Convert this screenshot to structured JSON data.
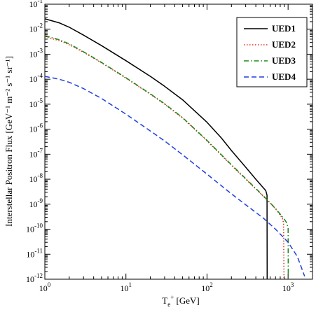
{
  "chart_data": {
    "type": "line",
    "xlabel": "T",
    "xlabel_sub": "e",
    "xlabel_sup": "+",
    "xlabel_unit": " [GeV]",
    "ylabel": "Interstellar Positron Flux [GeV⁻¹ m⁻² s⁻¹ sr⁻¹]",
    "x_scale": "log",
    "y_scale": "log",
    "xlim": [
      1,
      2000
    ],
    "ylim": [
      1e-12,
      0.1
    ],
    "x_ticks": [
      {
        "value": 1,
        "base": "10",
        "exp": "0"
      },
      {
        "value": 10,
        "base": "10",
        "exp": "1"
      },
      {
        "value": 100,
        "base": "10",
        "exp": "2"
      },
      {
        "value": 1000,
        "base": "10",
        "exp": "3"
      }
    ],
    "y_ticks": [
      {
        "value": 1e-12,
        "base": "10",
        "exp": "-12"
      },
      {
        "value": 1e-11,
        "base": "10",
        "exp": "-11"
      },
      {
        "value": 1e-10,
        "base": "10",
        "exp": "-10"
      },
      {
        "value": 1e-09,
        "base": "10",
        "exp": "-9"
      },
      {
        "value": 1e-08,
        "base": "10",
        "exp": "-8"
      },
      {
        "value": 1e-07,
        "base": "10",
        "exp": "-7"
      },
      {
        "value": 1e-06,
        "base": "10",
        "exp": "-6"
      },
      {
        "value": 1e-05,
        "base": "10",
        "exp": "-5"
      },
      {
        "value": 0.0001,
        "base": "10",
        "exp": "-4"
      },
      {
        "value": 0.001,
        "base": "10",
        "exp": "-3"
      },
      {
        "value": 0.01,
        "base": "10",
        "exp": "-2"
      },
      {
        "value": 0.1,
        "base": "10",
        "exp": "-1"
      }
    ],
    "grid": false,
    "legend_position": "top-right",
    "series": [
      {
        "name": "UED1",
        "color": "#000000",
        "dash": "solid",
        "points": [
          [
            1,
            0.026
          ],
          [
            1.5,
            0.018
          ],
          [
            2,
            0.012
          ],
          [
            3,
            0.0058
          ],
          [
            5,
            0.0022
          ],
          [
            10,
            0.00055
          ],
          [
            20,
            0.00013
          ],
          [
            30,
            5.2e-05
          ],
          [
            50,
            1.5e-05
          ],
          [
            70,
            5.5e-06
          ],
          [
            100,
            1.9e-06
          ],
          [
            150,
            4.5e-07
          ],
          [
            200,
            1.4e-07
          ],
          [
            300,
            3e-08
          ],
          [
            400,
            1e-08
          ],
          [
            530,
            3.5e-09
          ],
          [
            550,
            2.3e-09
          ],
          [
            552,
            1e-12
          ]
        ]
      },
      {
        "name": "UED2",
        "color": "#e0301e",
        "dash": "dotted",
        "points": [
          [
            1,
            0.005
          ],
          [
            1.5,
            0.0035
          ],
          [
            2,
            0.0024
          ],
          [
            3,
            0.0012
          ],
          [
            5,
            0.00045
          ],
          [
            10,
            0.00011
          ],
          [
            20,
            2.5e-05
          ],
          [
            30,
            1e-05
          ],
          [
            50,
            2.8e-06
          ],
          [
            100,
            3.4e-07
          ],
          [
            200,
            3.6e-08
          ],
          [
            300,
            1e-08
          ],
          [
            500,
            2e-09
          ],
          [
            700,
            6.5e-10
          ],
          [
            850,
            2.8e-10
          ],
          [
            880,
            1.8e-10
          ],
          [
            890,
            1e-12
          ]
        ]
      },
      {
        "name": "UED3",
        "color": "#1a8a1a",
        "dash": "dashdot",
        "points": [
          [
            1,
            0.0055
          ],
          [
            1.5,
            0.0038
          ],
          [
            2,
            0.0026
          ],
          [
            3,
            0.00125
          ],
          [
            5,
            0.00047
          ],
          [
            10,
            0.000115
          ],
          [
            20,
            2.6e-05
          ],
          [
            30,
            1.05e-05
          ],
          [
            50,
            2.9e-06
          ],
          [
            100,
            3.6e-07
          ],
          [
            200,
            3.8e-08
          ],
          [
            300,
            1.05e-08
          ],
          [
            500,
            2.1e-09
          ],
          [
            700,
            6.8e-10
          ],
          [
            900,
            2.5e-10
          ],
          [
            960,
            1.8e-10
          ],
          [
            1000,
            1.1e-10
          ],
          [
            1005,
            1e-12
          ]
        ]
      },
      {
        "name": "UED4",
        "color": "#1f3fe0",
        "dash": "dashed",
        "points": [
          [
            1,
            0.00013
          ],
          [
            1.5,
            0.0001
          ],
          [
            2,
            7.5e-05
          ],
          [
            3,
            4.2e-05
          ],
          [
            5,
            1.7e-05
          ],
          [
            10,
            4e-06
          ],
          [
            20,
            8.5e-07
          ],
          [
            30,
            3.4e-07
          ],
          [
            50,
            9.5e-08
          ],
          [
            100,
            1.6e-08
          ],
          [
            200,
            2.6e-09
          ],
          [
            300,
            9.5e-10
          ],
          [
            500,
            2.7e-10
          ],
          [
            700,
            1e-10
          ],
          [
            1000,
            3e-11
          ],
          [
            1300,
            8e-12
          ],
          [
            1600,
            1.3e-12
          ]
        ]
      }
    ]
  }
}
